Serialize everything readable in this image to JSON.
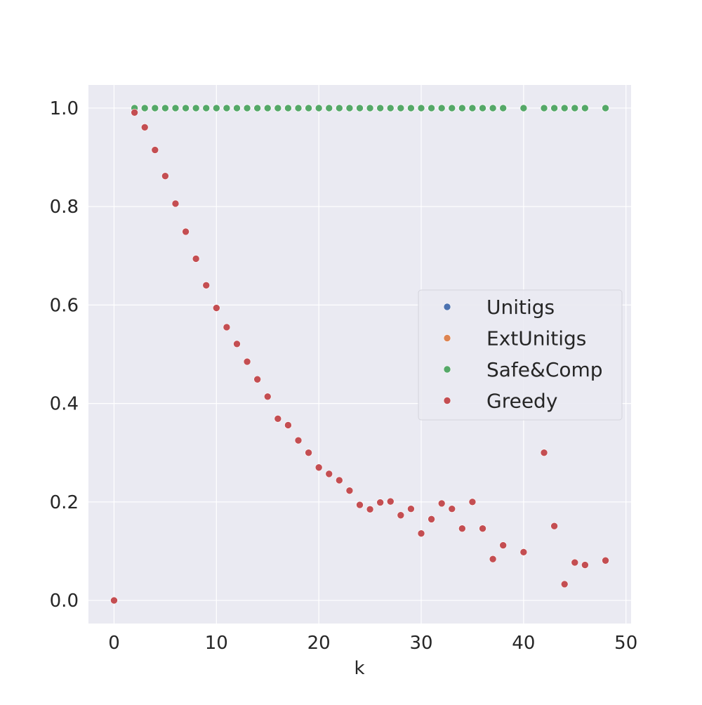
{
  "chart_data": {
    "type": "scatter",
    "title": "",
    "xlabel": "k",
    "ylabel": "",
    "xlim": [
      -2.5,
      50.5
    ],
    "ylim": [
      -0.047,
      1.047
    ],
    "xticks": [
      0,
      10,
      20,
      30,
      40,
      50
    ],
    "xtick_labels": [
      "0",
      "10",
      "20",
      "30",
      "40",
      "50"
    ],
    "yticks": [
      0.0,
      0.2,
      0.4,
      0.6,
      0.8,
      1.0
    ],
    "ytick_labels": [
      "0.0",
      "0.2",
      "0.4",
      "0.6",
      "0.8",
      "1.0"
    ],
    "grid": true,
    "legend_position": "center-right",
    "background": "#eaeaf2",
    "series": [
      {
        "name": "Unitigs",
        "color": "#4c72b0",
        "x": [
          2,
          3,
          4,
          5,
          6,
          7,
          8,
          9,
          10,
          11,
          12,
          13,
          14,
          15,
          16,
          17,
          18,
          19,
          20,
          21,
          22,
          23,
          24,
          25,
          26,
          27,
          28,
          29,
          30,
          31,
          32,
          33,
          34,
          35,
          36,
          37,
          38,
          40,
          42,
          43,
          44,
          45,
          46,
          48
        ],
        "y": [
          1,
          1,
          1,
          1,
          1,
          1,
          1,
          1,
          1,
          1,
          1,
          1,
          1,
          1,
          1,
          1,
          1,
          1,
          1,
          1,
          1,
          1,
          1,
          1,
          1,
          1,
          1,
          1,
          1,
          1,
          1,
          1,
          1,
          1,
          1,
          1,
          1,
          1,
          1,
          1,
          1,
          1,
          1,
          1
        ]
      },
      {
        "name": "ExtUnitigs",
        "color": "#dd8452",
        "x": [
          2,
          3,
          4,
          5,
          6,
          7,
          8,
          9,
          10,
          11,
          12,
          13,
          14,
          15,
          16,
          17,
          18,
          19,
          20,
          21,
          22,
          23,
          24,
          25,
          26,
          27,
          28,
          29,
          30,
          31,
          32,
          33,
          34,
          35,
          36,
          37,
          38,
          40,
          42,
          43,
          44,
          45,
          46,
          48
        ],
        "y": [
          1,
          1,
          1,
          1,
          1,
          1,
          1,
          1,
          1,
          1,
          1,
          1,
          1,
          1,
          1,
          1,
          1,
          1,
          1,
          1,
          1,
          1,
          1,
          1,
          1,
          1,
          1,
          1,
          1,
          1,
          1,
          1,
          1,
          1,
          1,
          1,
          1,
          1,
          1,
          1,
          1,
          1,
          1,
          1
        ]
      },
      {
        "name": "Safe&Comp",
        "color": "#55a868",
        "x": [
          2,
          3,
          4,
          5,
          6,
          7,
          8,
          9,
          10,
          11,
          12,
          13,
          14,
          15,
          16,
          17,
          18,
          19,
          20,
          21,
          22,
          23,
          24,
          25,
          26,
          27,
          28,
          29,
          30,
          31,
          32,
          33,
          34,
          35,
          36,
          37,
          38,
          40,
          42,
          43,
          44,
          45,
          46,
          48
        ],
        "y": [
          1,
          1,
          1,
          1,
          1,
          1,
          1,
          1,
          1,
          1,
          1,
          1,
          1,
          1,
          1,
          1,
          1,
          1,
          1,
          1,
          1,
          1,
          1,
          1,
          1,
          1,
          1,
          1,
          1,
          1,
          1,
          1,
          1,
          1,
          1,
          1,
          1,
          1,
          1,
          1,
          1,
          1,
          1,
          1
        ]
      },
      {
        "name": "Greedy",
        "color": "#c44e52",
        "x": [
          0,
          2,
          3,
          4,
          5,
          6,
          7,
          8,
          9,
          10,
          11,
          12,
          13,
          14,
          15,
          16,
          17,
          18,
          19,
          20,
          21,
          22,
          23,
          24,
          25,
          26,
          27,
          28,
          29,
          30,
          31,
          32,
          33,
          34,
          35,
          36,
          37,
          38,
          40,
          42,
          43,
          44,
          45,
          46,
          48
        ],
        "y": [
          0.0,
          0.991,
          0.961,
          0.915,
          0.862,
          0.806,
          0.749,
          0.694,
          0.64,
          0.594,
          0.555,
          0.521,
          0.485,
          0.449,
          0.414,
          0.369,
          0.356,
          0.325,
          0.3,
          0.27,
          0.257,
          0.244,
          0.223,
          0.194,
          0.185,
          0.199,
          0.201,
          0.173,
          0.186,
          0.136,
          0.165,
          0.197,
          0.186,
          0.146,
          0.2,
          0.146,
          0.084,
          0.112,
          0.098,
          0.3,
          0.151,
          0.033,
          0.077,
          0.072,
          0.081
        ]
      }
    ]
  }
}
